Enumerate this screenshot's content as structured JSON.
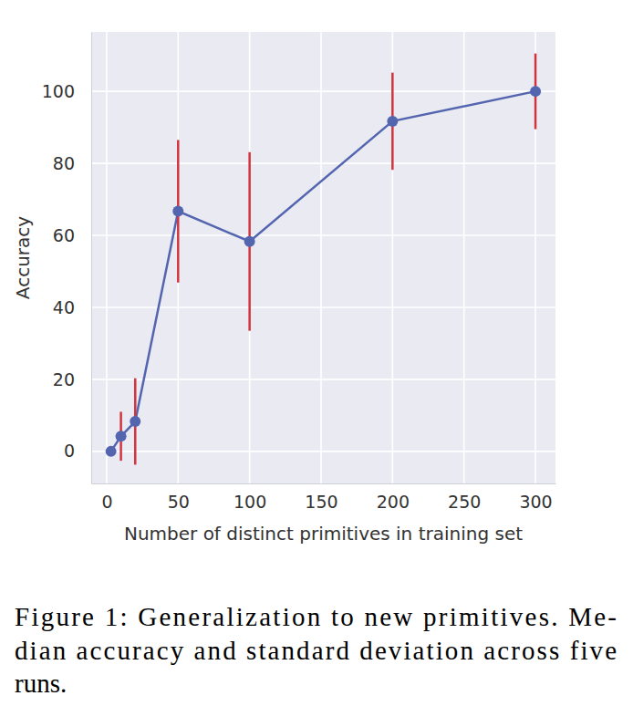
{
  "chart_data": {
    "type": "line",
    "x_label": "Number of distinct primitives in training set",
    "y_label": "Accuracy",
    "caption": [
      "Figure 1: Generalization to new primitives. Me-",
      "dian accuracy and standard deviation across five",
      "runs."
    ],
    "x": [
      3,
      10,
      20,
      50,
      100,
      200,
      300
    ],
    "values": [
      0,
      4.2,
      8.3,
      66.7,
      58.3,
      91.7,
      100
    ],
    "errors": [
      1,
      6.8,
      12,
      19.8,
      24.8,
      13.5,
      10.5
    ],
    "color": "#5465b0",
    "marker": "circle",
    "xlim": [
      -10.8,
      314
    ],
    "ylim": [
      -8.9,
      116.5
    ],
    "xticks": [
      0,
      50,
      100,
      150,
      200,
      250,
      300
    ],
    "yticks": [
      0,
      20,
      40,
      60,
      80,
      100
    ],
    "grid": true
  }
}
